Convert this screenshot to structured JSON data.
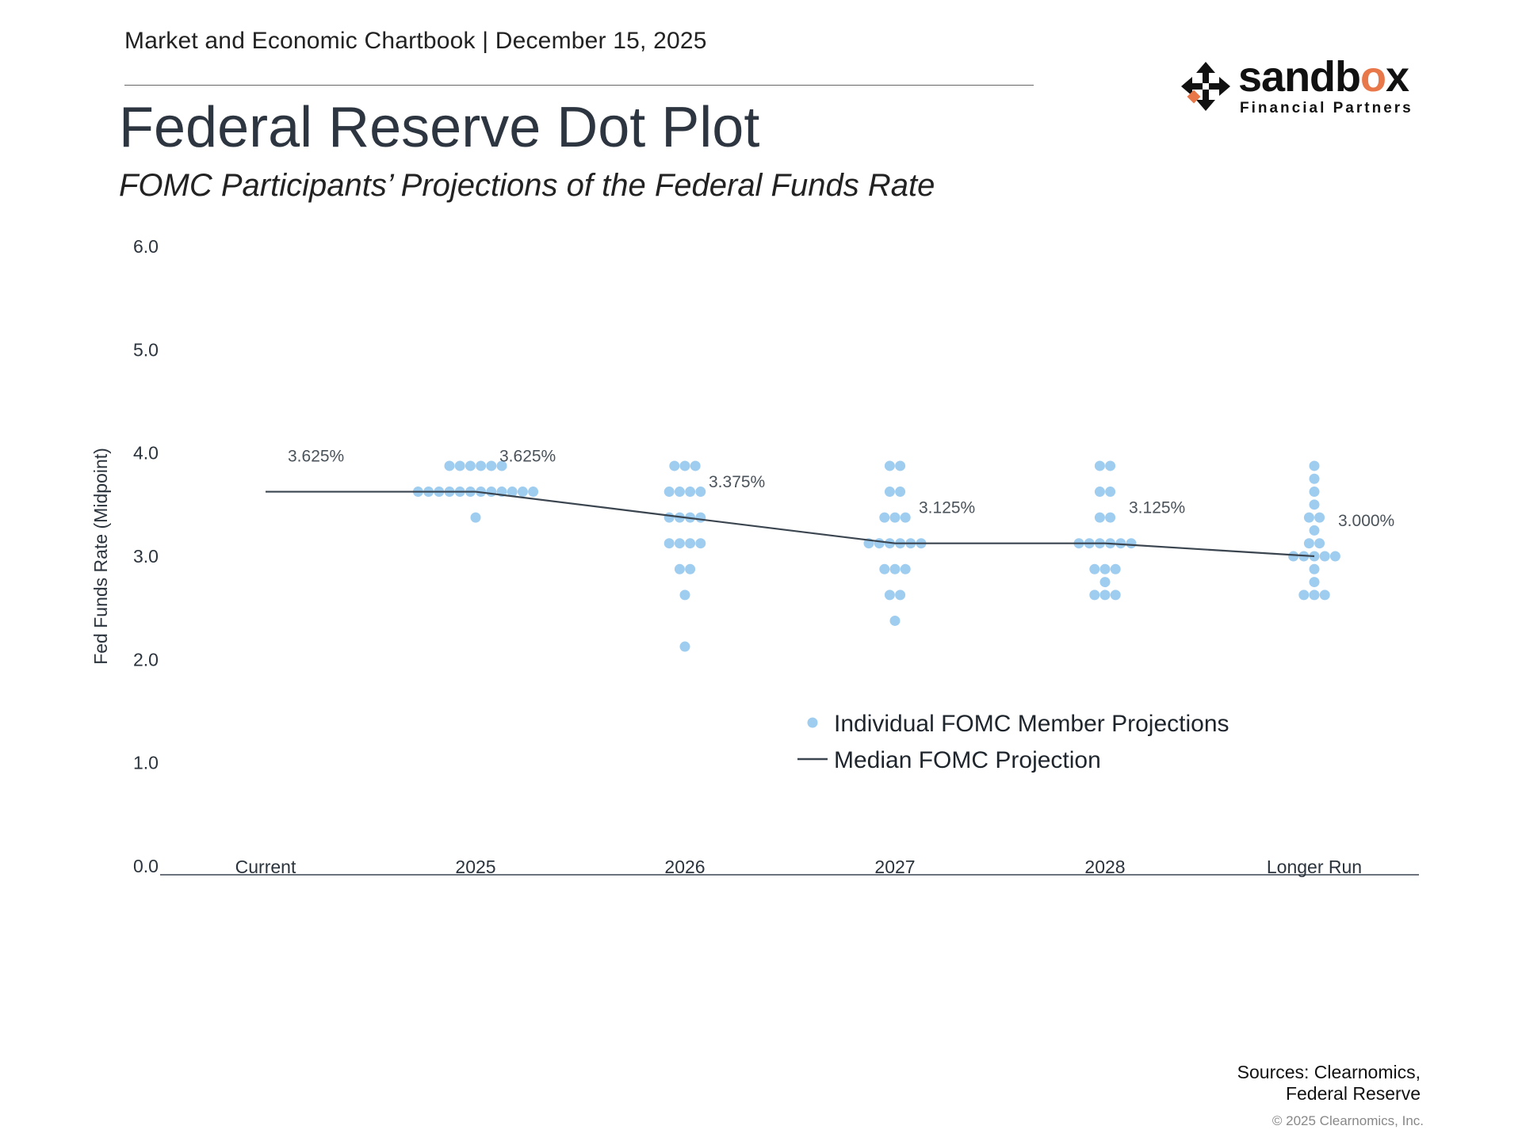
{
  "header": {
    "line": "Market and Economic Chartbook | December 15, 2025",
    "title": "Federal Reserve Dot Plot",
    "subtitle": "FOMC Participants’ Projections of the Federal Funds Rate"
  },
  "logo": {
    "word_prefix": "sandb",
    "word_accent": "o",
    "word_suffix": "x",
    "sub": "Financial Partners",
    "accent_color": "#e8774a"
  },
  "colors": {
    "dot": "#9fcdf0",
    "median_line": "#3b4550",
    "axis": "#3b4550",
    "text": "#2b333c"
  },
  "chart_data": {
    "type": "scatter",
    "title": "Federal Reserve Dot Plot",
    "subtitle": "FOMC Participants’ Projections of the Federal Funds Rate",
    "ylabel": "Fed Funds Rate (Midpoint)",
    "xlabel": "",
    "ylim": [
      0,
      6
    ],
    "yticks": [
      "0.0",
      "1.0",
      "2.0",
      "3.0",
      "4.0",
      "5.0",
      "6.0"
    ],
    "categories": [
      "Current",
      "2025",
      "2026",
      "2027",
      "2028",
      "Longer Run"
    ],
    "median": {
      "name": "Median FOMC Projection",
      "values": [
        3.625,
        3.625,
        3.375,
        3.125,
        3.125,
        3.0
      ],
      "labels": [
        "3.625%",
        "3.625%",
        "3.375%",
        "3.125%",
        "3.125%",
        "3.000%"
      ]
    },
    "dots": {
      "name": "Individual FOMC Member Projections",
      "groups": [
        {
          "category": "Current",
          "points": []
        },
        {
          "category": "2025",
          "points": [
            {
              "rate": 3.875,
              "count": 6
            },
            {
              "rate": 3.625,
              "count": 12
            },
            {
              "rate": 3.375,
              "count": 1
            }
          ]
        },
        {
          "category": "2026",
          "points": [
            {
              "rate": 3.875,
              "count": 3
            },
            {
              "rate": 3.625,
              "count": 4
            },
            {
              "rate": 3.375,
              "count": 4
            },
            {
              "rate": 3.125,
              "count": 4
            },
            {
              "rate": 2.875,
              "count": 2
            },
            {
              "rate": 2.625,
              "count": 1
            },
            {
              "rate": 2.125,
              "count": 1
            }
          ]
        },
        {
          "category": "2027",
          "points": [
            {
              "rate": 3.875,
              "count": 2
            },
            {
              "rate": 3.625,
              "count": 2
            },
            {
              "rate": 3.375,
              "count": 3
            },
            {
              "rate": 3.125,
              "count": 6
            },
            {
              "rate": 2.875,
              "count": 3
            },
            {
              "rate": 2.625,
              "count": 2
            },
            {
              "rate": 2.375,
              "count": 1
            }
          ]
        },
        {
          "category": "2028",
          "points": [
            {
              "rate": 3.875,
              "count": 2
            },
            {
              "rate": 3.625,
              "count": 2
            },
            {
              "rate": 3.375,
              "count": 2
            },
            {
              "rate": 3.125,
              "count": 6
            },
            {
              "rate": 2.875,
              "count": 3
            },
            {
              "rate": 2.75,
              "count": 1
            },
            {
              "rate": 2.625,
              "count": 3
            }
          ]
        },
        {
          "category": "Longer Run",
          "points": [
            {
              "rate": 3.875,
              "count": 1
            },
            {
              "rate": 3.75,
              "count": 1
            },
            {
              "rate": 3.625,
              "count": 1
            },
            {
              "rate": 3.5,
              "count": 1
            },
            {
              "rate": 3.375,
              "count": 2
            },
            {
              "rate": 3.25,
              "count": 1
            },
            {
              "rate": 3.125,
              "count": 2
            },
            {
              "rate": 3.0,
              "count": 5
            },
            {
              "rate": 2.875,
              "count": 1
            },
            {
              "rate": 2.75,
              "count": 1
            },
            {
              "rate": 2.625,
              "count": 3
            }
          ]
        }
      ]
    },
    "legend": {
      "position": "center",
      "items": [
        "Individual FOMC Member Projections",
        "Median FOMC Projection"
      ]
    }
  },
  "footer": {
    "sources_line1": "Sources: Clearnomics,",
    "sources_line2": "Federal Reserve",
    "copyright": "© 2025 Clearnomics, Inc."
  }
}
